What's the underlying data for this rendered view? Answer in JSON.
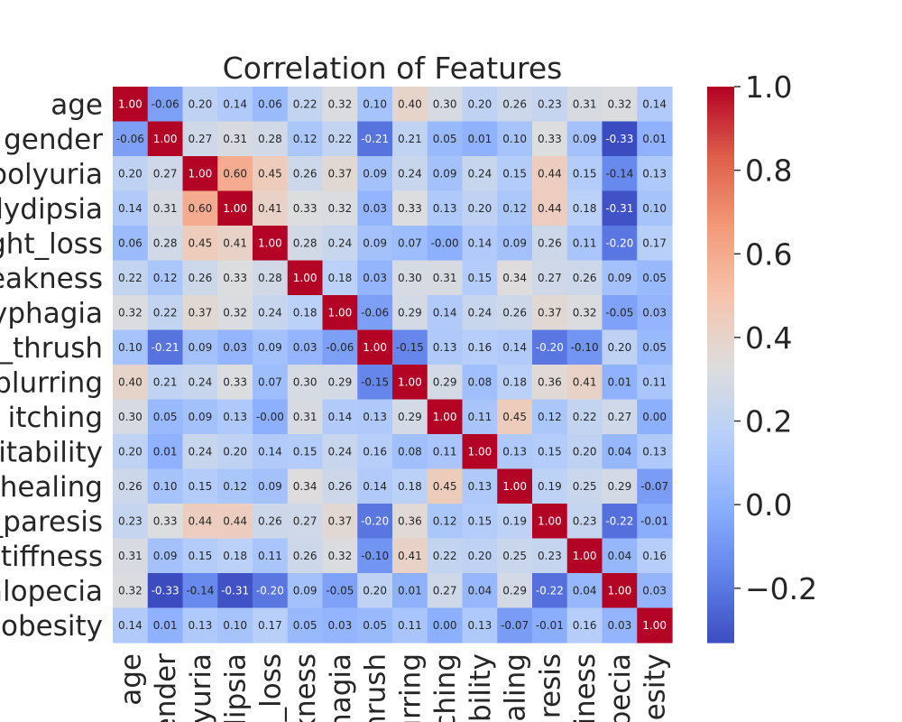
{
  "chart_data": {
    "type": "heatmap",
    "title": "Correlation of Features",
    "xlabel": "",
    "ylabel": "",
    "row_labels": [
      "age",
      "gender",
      "polyuria",
      "lydipsia",
      "ght_loss",
      "eakness",
      "yphagia",
      "_thrush",
      "blurring",
      "itching",
      "ritability",
      "_healing",
      "_paresis",
      "stiffness",
      "alopecia",
      "obesity"
    ],
    "col_labels": [
      "age",
      "ender",
      "yuria",
      "lipsia",
      "_loss",
      "kness",
      "hagia",
      "hrush",
      "urring",
      "ching",
      "ability",
      "aling",
      "resis",
      "iness",
      "opecia",
      "obesity"
    ],
    "values": [
      [
        1.0,
        -0.06,
        0.2,
        0.14,
        0.06,
        0.22,
        0.32,
        0.1,
        0.4,
        0.3,
        0.2,
        0.26,
        0.23,
        0.31,
        0.32,
        0.14
      ],
      [
        -0.06,
        1.0,
        0.27,
        0.31,
        0.28,
        0.12,
        0.22,
        -0.21,
        0.21,
        0.05,
        0.01,
        0.1,
        0.33,
        0.09,
        -0.33,
        0.01
      ],
      [
        0.2,
        0.27,
        1.0,
        0.6,
        0.45,
        0.26,
        0.37,
        0.09,
        0.24,
        0.09,
        0.24,
        0.15,
        0.44,
        0.15,
        -0.14,
        0.13
      ],
      [
        0.14,
        0.31,
        0.6,
        1.0,
        0.41,
        0.33,
        0.32,
        0.03,
        0.33,
        0.13,
        0.2,
        0.12,
        0.44,
        0.18,
        -0.31,
        0.1
      ],
      [
        0.06,
        0.28,
        0.45,
        0.41,
        1.0,
        0.28,
        0.24,
        0.09,
        0.07,
        -0.0,
        0.14,
        0.09,
        0.26,
        0.11,
        -0.2,
        0.17
      ],
      [
        0.22,
        0.12,
        0.26,
        0.33,
        0.28,
        1.0,
        0.18,
        0.03,
        0.3,
        0.31,
        0.15,
        0.34,
        0.27,
        0.26,
        0.09,
        0.05
      ],
      [
        0.32,
        0.22,
        0.37,
        0.32,
        0.24,
        0.18,
        1.0,
        -0.06,
        0.29,
        0.14,
        0.24,
        0.26,
        0.37,
        0.32,
        -0.05,
        0.03
      ],
      [
        0.1,
        -0.21,
        0.09,
        0.03,
        0.09,
        0.03,
        -0.06,
        1.0,
        -0.15,
        0.13,
        0.16,
        0.14,
        -0.2,
        -0.1,
        0.2,
        0.05
      ],
      [
        0.4,
        0.21,
        0.24,
        0.33,
        0.07,
        0.3,
        0.29,
        -0.15,
        1.0,
        0.29,
        0.08,
        0.18,
        0.36,
        0.41,
        0.01,
        0.11
      ],
      [
        0.3,
        0.05,
        0.09,
        0.13,
        -0.0,
        0.31,
        0.14,
        0.13,
        0.29,
        1.0,
        0.11,
        0.45,
        0.12,
        0.22,
        0.27,
        0.0
      ],
      [
        0.2,
        0.01,
        0.24,
        0.2,
        0.14,
        0.15,
        0.24,
        0.16,
        0.08,
        0.11,
        1.0,
        0.13,
        0.15,
        0.2,
        0.04,
        0.13
      ],
      [
        0.26,
        0.1,
        0.15,
        0.12,
        0.09,
        0.34,
        0.26,
        0.14,
        0.18,
        0.45,
        0.13,
        1.0,
        0.19,
        0.25,
        0.29,
        -0.07
      ],
      [
        0.23,
        0.33,
        0.44,
        0.44,
        0.26,
        0.27,
        0.37,
        -0.2,
        0.36,
        0.12,
        0.15,
        0.19,
        1.0,
        0.23,
        -0.22,
        -0.01
      ],
      [
        0.31,
        0.09,
        0.15,
        0.18,
        0.11,
        0.26,
        0.32,
        -0.1,
        0.41,
        0.22,
        0.2,
        0.25,
        0.23,
        1.0,
        0.04,
        0.16
      ],
      [
        0.32,
        -0.33,
        -0.14,
        -0.31,
        -0.2,
        0.09,
        -0.05,
        0.2,
        0.01,
        0.27,
        0.04,
        0.29,
        -0.22,
        0.04,
        1.0,
        0.03
      ],
      [
        0.14,
        0.01,
        0.13,
        0.1,
        0.17,
        0.05,
        0.03,
        0.05,
        0.11,
        0.0,
        0.13,
        -0.07,
        -0.01,
        0.16,
        0.03,
        1.0
      ]
    ],
    "colorbar": {
      "cmap": "coolwarm",
      "range": [
        -0.33,
        1.0
      ],
      "ticks": [
        -0.2,
        0.0,
        0.2,
        0.4,
        0.6,
        0.8,
        1.0
      ],
      "tick_labels": [
        "−0.2",
        "0.0",
        "0.2",
        "0.4",
        "0.6",
        "0.8",
        "1.0"
      ]
    },
    "value_format": "2 decimals",
    "grid": false
  }
}
